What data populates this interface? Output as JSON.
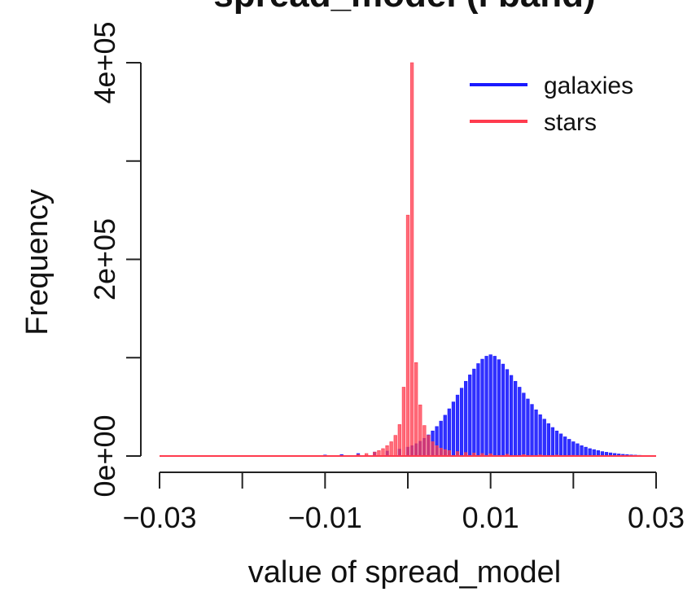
{
  "chart_data": {
    "type": "bar",
    "title": "spread_model (i band)",
    "xlabel": "value of spread_model",
    "ylabel": "Frequency",
    "xlim": [
      -0.03,
      0.03
    ],
    "ylim": [
      0,
      400000
    ],
    "x_ticks": [
      -0.03,
      -0.02,
      -0.01,
      0,
      0.01,
      0.02,
      0.03
    ],
    "x_tick_labels": [
      "-0.03",
      "",
      "-0.01",
      "",
      "0.01",
      "",
      "0.03"
    ],
    "y_ticks": [
      0,
      100000,
      200000,
      300000,
      400000
    ],
    "y_tick_labels": [
      "0e+00",
      "",
      "2e+05",
      "",
      "4e+05"
    ],
    "bin_width": 0.0005,
    "legend_position": "top-right",
    "grid": false,
    "series": [
      {
        "name": "galaxies",
        "color": "#1a1aff",
        "values": [
          [
            -0.03,
            0
          ],
          [
            -0.028,
            0
          ],
          [
            -0.026,
            0
          ],
          [
            -0.024,
            0
          ],
          [
            -0.022,
            0
          ],
          [
            -0.02,
            0
          ],
          [
            -0.018,
            0
          ],
          [
            -0.016,
            0
          ],
          [
            -0.014,
            0
          ],
          [
            -0.012,
            500
          ],
          [
            -0.01,
            1000
          ],
          [
            -0.008,
            1500
          ],
          [
            -0.006,
            2500
          ],
          [
            -0.004,
            4000
          ],
          [
            -0.0025,
            5000
          ],
          [
            -0.001,
            7000
          ],
          [
            0,
            9000
          ],
          [
            0.0005,
            10500
          ],
          [
            0.001,
            12500
          ],
          [
            0.0015,
            15000
          ],
          [
            0.002,
            18000
          ],
          [
            0.0025,
            21500
          ],
          [
            0.003,
            25500
          ],
          [
            0.0035,
            30000
          ],
          [
            0.004,
            35500
          ],
          [
            0.0045,
            41500
          ],
          [
            0.005,
            48000
          ],
          [
            0.0055,
            55000
          ],
          [
            0.006,
            62000
          ],
          [
            0.0065,
            69000
          ],
          [
            0.007,
            76000
          ],
          [
            0.0075,
            82500
          ],
          [
            0.008,
            88500
          ],
          [
            0.0085,
            94000
          ],
          [
            0.009,
            98500
          ],
          [
            0.0095,
            101500
          ],
          [
            0.01,
            103000
          ],
          [
            0.0105,
            101500
          ],
          [
            0.011,
            98000
          ],
          [
            0.0115,
            93500
          ],
          [
            0.012,
            88000
          ],
          [
            0.0125,
            82000
          ],
          [
            0.013,
            76000
          ],
          [
            0.0135,
            70000
          ],
          [
            0.014,
            64000
          ],
          [
            0.0145,
            58000
          ],
          [
            0.015,
            52500
          ],
          [
            0.0155,
            47000
          ],
          [
            0.016,
            42000
          ],
          [
            0.0165,
            37500
          ],
          [
            0.017,
            33000
          ],
          [
            0.0175,
            29000
          ],
          [
            0.018,
            25500
          ],
          [
            0.0185,
            22500
          ],
          [
            0.019,
            19500
          ],
          [
            0.0195,
            17000
          ],
          [
            0.02,
            14500
          ],
          [
            0.0205,
            12500
          ],
          [
            0.021,
            10500
          ],
          [
            0.0215,
            9000
          ],
          [
            0.022,
            7500
          ],
          [
            0.0225,
            6500
          ],
          [
            0.023,
            5500
          ],
          [
            0.0235,
            4500
          ],
          [
            0.024,
            3800
          ],
          [
            0.0245,
            3200
          ],
          [
            0.025,
            2600
          ],
          [
            0.0255,
            2100
          ],
          [
            0.026,
            1700
          ],
          [
            0.0265,
            1400
          ],
          [
            0.027,
            1100
          ],
          [
            0.0275,
            900
          ],
          [
            0.028,
            700
          ],
          [
            0.0285,
            500
          ],
          [
            0.029,
            400
          ],
          [
            0.0295,
            300
          ],
          [
            0.03,
            0
          ]
        ]
      },
      {
        "name": "stars",
        "color": "#ff3b4e",
        "values": [
          [
            -0.03,
            0
          ],
          [
            -0.028,
            0
          ],
          [
            -0.026,
            0
          ],
          [
            -0.024,
            0
          ],
          [
            -0.022,
            0
          ],
          [
            -0.02,
            0
          ],
          [
            -0.018,
            0
          ],
          [
            -0.016,
            0
          ],
          [
            -0.014,
            0
          ],
          [
            -0.012,
            0
          ],
          [
            -0.01,
            0
          ],
          [
            -0.008,
            500
          ],
          [
            -0.006,
            1500
          ],
          [
            -0.005,
            2500
          ],
          [
            -0.004,
            4000
          ],
          [
            -0.0035,
            5500
          ],
          [
            -0.003,
            7500
          ],
          [
            -0.0025,
            10500
          ],
          [
            -0.002,
            14500
          ],
          [
            -0.0015,
            21000
          ],
          [
            -0.001,
            32000
          ],
          [
            -0.0005,
            70000
          ],
          [
            0,
            245000
          ],
          [
            0.0005,
            400000
          ],
          [
            0.001,
            95000
          ],
          [
            0.0015,
            52000
          ],
          [
            0.002,
            31000
          ],
          [
            0.0025,
            21000
          ],
          [
            0.003,
            14500
          ],
          [
            0.0035,
            10500
          ],
          [
            0.004,
            8000
          ],
          [
            0.0045,
            6500
          ],
          [
            0.005,
            5500
          ],
          [
            0.006,
            4500
          ],
          [
            0.007,
            3500
          ],
          [
            0.008,
            3000
          ],
          [
            0.009,
            2500
          ],
          [
            0.01,
            2200
          ],
          [
            0.012,
            1800
          ],
          [
            0.014,
            1400
          ],
          [
            0.016,
            1100
          ],
          [
            0.018,
            900
          ],
          [
            0.02,
            700
          ],
          [
            0.022,
            500
          ],
          [
            0.024,
            400
          ],
          [
            0.026,
            300
          ],
          [
            0.028,
            200
          ],
          [
            0.03,
            0
          ]
        ]
      }
    ]
  }
}
